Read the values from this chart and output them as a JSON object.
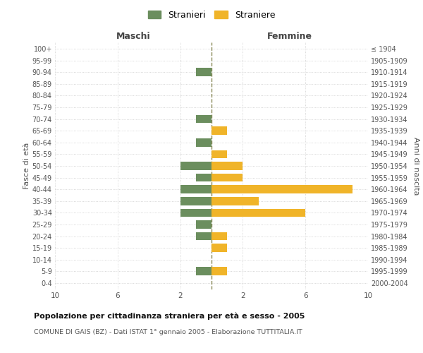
{
  "age_groups": [
    "0-4",
    "5-9",
    "10-14",
    "15-19",
    "20-24",
    "25-29",
    "30-34",
    "35-39",
    "40-44",
    "45-49",
    "50-54",
    "55-59",
    "60-64",
    "65-69",
    "70-74",
    "75-79",
    "80-84",
    "85-89",
    "90-94",
    "95-99",
    "100+"
  ],
  "birth_years": [
    "2000-2004",
    "1995-1999",
    "1990-1994",
    "1985-1989",
    "1980-1984",
    "1975-1979",
    "1970-1974",
    "1965-1969",
    "1960-1964",
    "1955-1959",
    "1950-1954",
    "1945-1949",
    "1940-1944",
    "1935-1939",
    "1930-1934",
    "1925-1929",
    "1920-1924",
    "1915-1919",
    "1910-1914",
    "1905-1909",
    "≤ 1904"
  ],
  "maschi_stranieri": [
    0,
    1,
    0,
    0,
    1,
    1,
    2,
    2,
    2,
    1,
    2,
    0,
    1,
    0,
    1,
    0,
    0,
    0,
    1,
    0,
    0
  ],
  "femmine_straniere": [
    0,
    1,
    0,
    1,
    1,
    0,
    6,
    3,
    9,
    2,
    2,
    1,
    0,
    1,
    0,
    0,
    0,
    0,
    0,
    0,
    0
  ],
  "color_maschi": "#6b8e5e",
  "color_femmine": "#f0b429",
  "xlim": 10,
  "xlabel_left": "Maschi",
  "xlabel_right": "Femmine",
  "ylabel_left": "Fasce di età",
  "ylabel_right": "Anni di nascita",
  "legend_stranieri": "Stranieri",
  "legend_straniere": "Straniere",
  "title1": "Popolazione per cittadinanza straniera per età e sesso - 2005",
  "title2": "COMUNE DI GAIS (BZ) - Dati ISTAT 1° gennaio 2005 - Elaborazione TUTTITALIA.IT",
  "bg_color": "#ffffff",
  "grid_color": "#cccccc",
  "center_line_color": "#8b8b5a"
}
